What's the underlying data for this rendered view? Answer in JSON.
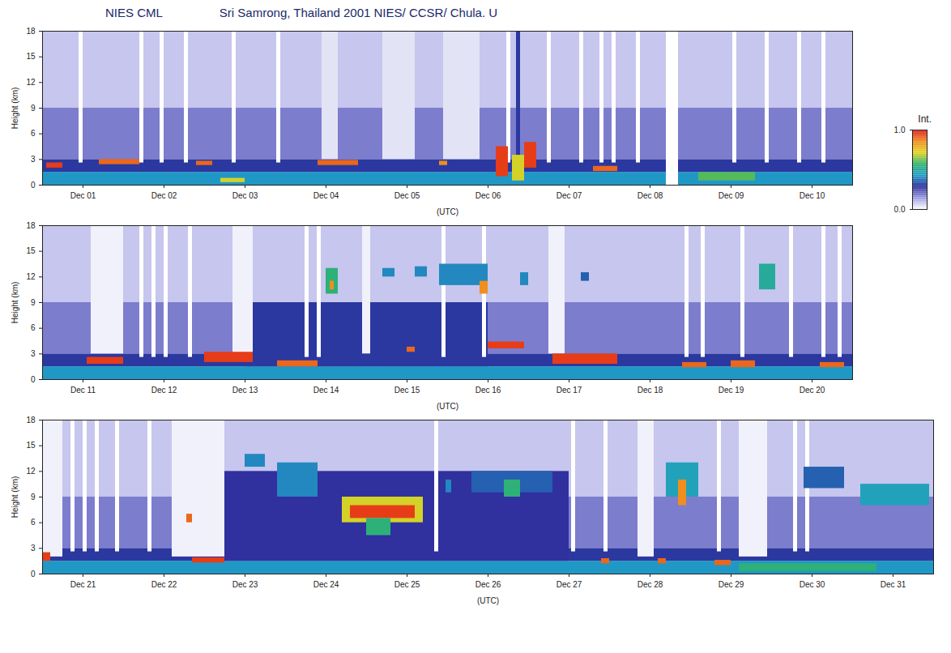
{
  "title": "NIES CML",
  "subtitle": "Sri Samrong, Thailand 2001  NIES/ CCSR/ Chula. U",
  "colorbar": {
    "label": "Int.",
    "range": [
      0,
      1
    ],
    "ticks": [
      0,
      1
    ]
  },
  "chart_data": [
    {
      "type": "heatmap",
      "xlabel": "(UTC)",
      "ylabel": "Height (km)",
      "xlim": [
        1,
        11
      ],
      "ylim": [
        0,
        18
      ],
      "yticks": [
        0,
        3,
        6,
        9,
        12,
        15,
        18
      ],
      "xticks": [
        {
          "value": 1.5,
          "label": "Dec 01"
        },
        {
          "value": 2.5,
          "label": "Dec 02"
        },
        {
          "value": 3.5,
          "label": "Dec 03"
        },
        {
          "value": 4.5,
          "label": "Dec 04"
        },
        {
          "value": 5.5,
          "label": "Dec 05"
        },
        {
          "value": 6.5,
          "label": "Dec 06"
        },
        {
          "value": 7.5,
          "label": "Dec 07"
        },
        {
          "value": 8.5,
          "label": "Dec 08"
        },
        {
          "value": 9.5,
          "label": "Dec 09"
        },
        {
          "value": 10.5,
          "label": "Dec 10"
        }
      ],
      "cells": [
        [
          1,
          11,
          0,
          1.5,
          0.42
        ],
        [
          1,
          11,
          1.5,
          3,
          0.3
        ],
        [
          1,
          11,
          3,
          9,
          0.18
        ],
        [
          1,
          11,
          9,
          18,
          0.08
        ],
        [
          4.45,
          4.65,
          3,
          18,
          0.04
        ],
        [
          5.2,
          5.6,
          3,
          18,
          0.04
        ],
        [
          5.95,
          6.4,
          3,
          18,
          0.04
        ],
        [
          1.45,
          1.5,
          2.6,
          18,
          0
        ],
        [
          2.2,
          2.25,
          2.6,
          18,
          0
        ],
        [
          2.45,
          2.5,
          2.6,
          18,
          0
        ],
        [
          2.75,
          2.8,
          2.6,
          18,
          0
        ],
        [
          3.34,
          3.39,
          2.6,
          18,
          0
        ],
        [
          3.89,
          3.94,
          2.6,
          18,
          0
        ],
        [
          6.73,
          6.78,
          2.6,
          18,
          0
        ],
        [
          7.23,
          7.28,
          2.6,
          18,
          0
        ],
        [
          7.63,
          7.68,
          2.6,
          18,
          0
        ],
        [
          7.88,
          7.93,
          2.6,
          18,
          0
        ],
        [
          8.03,
          8.08,
          2.6,
          18,
          0
        ],
        [
          8.33,
          8.38,
          2.6,
          18,
          0
        ],
        [
          9.52,
          9.57,
          2.6,
          18,
          0
        ],
        [
          9.92,
          9.97,
          2.6,
          18,
          0
        ],
        [
          10.32,
          10.37,
          2.6,
          18,
          0
        ],
        [
          10.62,
          10.67,
          2.6,
          18,
          0
        ],
        [
          8.7,
          8.85,
          0,
          18,
          0
        ],
        [
          6.85,
          6.9,
          3,
          18,
          0.3
        ],
        [
          1.05,
          1.25,
          2.0,
          2.6,
          0.95
        ],
        [
          1.7,
          2.2,
          2.4,
          3.0,
          0.9
        ],
        [
          2.9,
          3.1,
          2.3,
          2.8,
          0.9
        ],
        [
          4.4,
          4.9,
          2.3,
          2.9,
          0.9
        ],
        [
          5.9,
          6.0,
          2.3,
          2.8,
          0.85
        ],
        [
          6.6,
          6.75,
          1.0,
          4.5,
          0.95
        ],
        [
          6.8,
          6.95,
          0.5,
          3.5,
          0.7
        ],
        [
          6.95,
          7.1,
          2.0,
          5.0,
          0.95
        ],
        [
          7.8,
          8.1,
          1.6,
          2.2,
          0.9
        ],
        [
          9.1,
          9.8,
          0.5,
          1.5,
          0.6
        ],
        [
          3.2,
          3.5,
          0.3,
          0.8,
          0.7
        ]
      ]
    },
    {
      "type": "heatmap",
      "xlabel": "(UTC)",
      "ylabel": "Height (km)",
      "xlim": [
        11,
        21
      ],
      "ylim": [
        0,
        18
      ],
      "yticks": [
        0,
        3,
        6,
        9,
        12,
        15,
        18
      ],
      "xticks": [
        {
          "value": 11.5,
          "label": "Dec 11"
        },
        {
          "value": 12.5,
          "label": "Dec 12"
        },
        {
          "value": 13.5,
          "label": "Dec 13"
        },
        {
          "value": 14.5,
          "label": "Dec 14"
        },
        {
          "value": 15.5,
          "label": "Dec 15"
        },
        {
          "value": 16.5,
          "label": "Dec 16"
        },
        {
          "value": 17.5,
          "label": "Dec 17"
        },
        {
          "value": 18.5,
          "label": "Dec 18"
        },
        {
          "value": 19.5,
          "label": "Dec 19"
        },
        {
          "value": 20.5,
          "label": "Dec 20"
        }
      ],
      "cells": [
        [
          11,
          21,
          0,
          1.5,
          0.42
        ],
        [
          11,
          21,
          1.5,
          3,
          0.3
        ],
        [
          11,
          21,
          3,
          9,
          0.18
        ],
        [
          11,
          21,
          9,
          18,
          0.08
        ],
        [
          13.5,
          16.5,
          1.5,
          9,
          0.3
        ],
        [
          11.6,
          12.0,
          3,
          18,
          0.02
        ],
        [
          13.35,
          13.6,
          3,
          18,
          0.02
        ],
        [
          14.95,
          15.05,
          3,
          18,
          0.02
        ],
        [
          17.25,
          17.45,
          3,
          18,
          0.02
        ],
        [
          12.2,
          12.25,
          2.6,
          18,
          0
        ],
        [
          12.35,
          12.4,
          2.6,
          18,
          0
        ],
        [
          12.5,
          12.55,
          2.6,
          18,
          0
        ],
        [
          12.8,
          12.85,
          2.6,
          18,
          0
        ],
        [
          14.24,
          14.29,
          2.6,
          18,
          0
        ],
        [
          14.39,
          14.44,
          2.6,
          18,
          0
        ],
        [
          15.93,
          15.98,
          2.6,
          18,
          0
        ],
        [
          16.43,
          16.48,
          2.6,
          18,
          0
        ],
        [
          18.93,
          18.98,
          2.6,
          18,
          0
        ],
        [
          19.13,
          19.18,
          2.6,
          18,
          0
        ],
        [
          19.62,
          19.67,
          2.6,
          18,
          0
        ],
        [
          20.22,
          20.27,
          2.6,
          18,
          0
        ],
        [
          20.62,
          20.67,
          2.6,
          18,
          0
        ],
        [
          20.82,
          20.87,
          2.6,
          18,
          0
        ],
        [
          11.55,
          12.0,
          1.8,
          2.6,
          0.95
        ],
        [
          13.0,
          13.6,
          2.0,
          3.2,
          0.95
        ],
        [
          13.9,
          14.4,
          1.5,
          2.2,
          0.9
        ],
        [
          15.5,
          15.6,
          3.2,
          3.8,
          0.9
        ],
        [
          16.5,
          16.95,
          3.6,
          4.4,
          0.95
        ],
        [
          17.3,
          18.1,
          1.8,
          3.0,
          0.95
        ],
        [
          18.9,
          19.2,
          1.4,
          2.0,
          0.9
        ],
        [
          19.5,
          19.8,
          1.4,
          2.2,
          0.9
        ],
        [
          20.6,
          20.9,
          1.4,
          2.0,
          0.9
        ],
        [
          14.5,
          14.65,
          10,
          13,
          0.55
        ],
        [
          14.55,
          14.6,
          10.5,
          11.5,
          0.85
        ],
        [
          15.2,
          15.35,
          12,
          13,
          0.4
        ],
        [
          15.6,
          15.75,
          12,
          13.2,
          0.4
        ],
        [
          15.9,
          16.5,
          11,
          13.5,
          0.4
        ],
        [
          16.4,
          16.5,
          10,
          11.5,
          0.85
        ],
        [
          16.9,
          17.0,
          11,
          12.5,
          0.4
        ],
        [
          17.65,
          17.75,
          11.5,
          12.5,
          0.35
        ],
        [
          19.85,
          20.05,
          10.5,
          13.5,
          0.5
        ]
      ]
    },
    {
      "type": "heatmap",
      "xlabel": "(UTC)",
      "ylabel": "Height (km)",
      "xlim": [
        21,
        32
      ],
      "ylim": [
        0,
        18
      ],
      "yticks": [
        0,
        3,
        6,
        9,
        12,
        15,
        18
      ],
      "xticks": [
        {
          "value": 21.5,
          "label": "Dec 21"
        },
        {
          "value": 22.5,
          "label": "Dec 22"
        },
        {
          "value": 23.5,
          "label": "Dec 23"
        },
        {
          "value": 24.5,
          "label": "Dec 24"
        },
        {
          "value": 25.5,
          "label": "Dec 25"
        },
        {
          "value": 26.5,
          "label": "Dec 26"
        },
        {
          "value": 27.5,
          "label": "Dec 27"
        },
        {
          "value": 28.5,
          "label": "Dec 28"
        },
        {
          "value": 29.5,
          "label": "Dec 29"
        },
        {
          "value": 30.5,
          "label": "Dec 30"
        },
        {
          "value": 31.5,
          "label": "Dec 31"
        }
      ],
      "cells": [
        [
          21,
          32,
          0,
          1.5,
          0.42
        ],
        [
          21,
          32,
          1.5,
          3,
          0.3
        ],
        [
          21,
          32,
          3,
          9,
          0.18
        ],
        [
          21,
          32,
          9,
          18,
          0.08
        ],
        [
          23,
          27.5,
          1.5,
          12,
          0.28
        ],
        [
          21.0,
          21.25,
          2,
          18,
          0.02
        ],
        [
          22.6,
          23.25,
          2,
          18,
          0.02
        ],
        [
          28.35,
          28.55,
          2,
          18,
          0.02
        ],
        [
          29.6,
          29.95,
          2,
          18,
          0.02
        ],
        [
          21.35,
          21.4,
          2.6,
          18,
          0
        ],
        [
          21.5,
          21.55,
          2.6,
          18,
          0
        ],
        [
          21.65,
          21.7,
          2.6,
          18,
          0
        ],
        [
          21.9,
          21.95,
          2.6,
          18,
          0
        ],
        [
          22.3,
          22.35,
          2.6,
          18,
          0
        ],
        [
          25.84,
          25.89,
          2.6,
          18,
          0
        ],
        [
          27.53,
          27.58,
          2.6,
          18,
          0
        ],
        [
          27.93,
          27.98,
          2.6,
          18,
          0
        ],
        [
          29.33,
          29.38,
          2.6,
          18,
          0
        ],
        [
          30.27,
          30.32,
          2.6,
          18,
          0
        ],
        [
          30.42,
          30.47,
          2.6,
          18,
          0
        ],
        [
          21.0,
          21.1,
          1.5,
          2.5,
          0.95
        ],
        [
          22.85,
          23.25,
          1.3,
          1.9,
          0.95
        ],
        [
          22.78,
          22.85,
          6,
          7,
          0.9
        ],
        [
          23.5,
          23.75,
          12.5,
          14,
          0.4
        ],
        [
          23.9,
          24.4,
          9,
          13,
          0.4
        ],
        [
          24.7,
          25.7,
          6,
          9,
          0.7
        ],
        [
          24.8,
          25.6,
          6.5,
          8,
          0.95
        ],
        [
          25.0,
          25.3,
          4.5,
          6.5,
          0.55
        ],
        [
          25.98,
          26.05,
          9.5,
          11,
          0.4
        ],
        [
          26.3,
          27.3,
          9.5,
          12,
          0.35
        ],
        [
          26.7,
          26.9,
          9,
          11,
          0.55
        ],
        [
          28.7,
          29.1,
          9,
          13,
          0.45
        ],
        [
          28.85,
          28.95,
          8,
          11,
          0.85
        ],
        [
          30.4,
          30.9,
          10,
          12.5,
          0.35
        ],
        [
          31.1,
          31.95,
          8,
          10.5,
          0.45
        ],
        [
          29.6,
          31.3,
          0.3,
          1.2,
          0.55
        ],
        [
          27.9,
          28.0,
          1.2,
          1.8,
          0.9
        ],
        [
          28.6,
          28.7,
          1.2,
          1.8,
          0.9
        ],
        [
          29.3,
          29.5,
          1.0,
          1.6,
          0.9
        ]
      ]
    }
  ]
}
